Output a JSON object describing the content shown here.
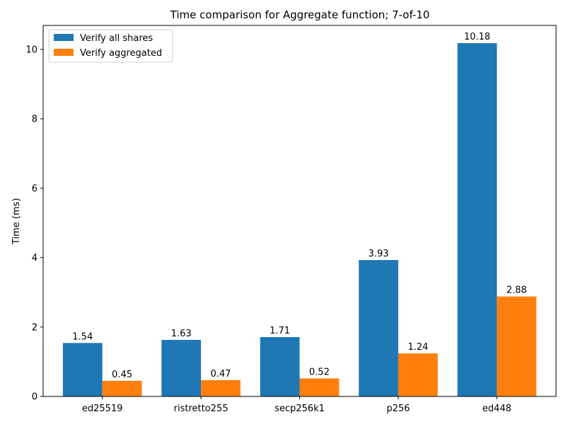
{
  "chart_data": {
    "type": "bar",
    "title": "Time comparison for Aggregate function; 7-of-10",
    "xlabel": "",
    "ylabel": "Time (ms)",
    "categories": [
      "ed25519",
      "ristretto255",
      "secp256k1",
      "p256",
      "ed448"
    ],
    "series": [
      {
        "name": "Verify all shares",
        "color": "#1f77b4",
        "values": [
          1.54,
          1.63,
          1.71,
          3.93,
          10.18
        ],
        "labels": [
          "1.54",
          "1.63",
          "1.71",
          "3.93",
          "10.18"
        ]
      },
      {
        "name": "Verify aggregated",
        "color": "#ff7f0e",
        "values": [
          0.45,
          0.47,
          0.52,
          1.24,
          2.88
        ],
        "labels": [
          "0.45",
          "0.47",
          "0.52",
          "1.24",
          "2.88"
        ]
      }
    ],
    "ylim": [
      0,
      10.69
    ],
    "yticks": [
      0,
      2,
      4,
      6,
      8,
      10
    ],
    "ytick_labels": [
      "0",
      "2",
      "4",
      "6",
      "8",
      "10"
    ],
    "grid": false,
    "legend": "top-left"
  }
}
